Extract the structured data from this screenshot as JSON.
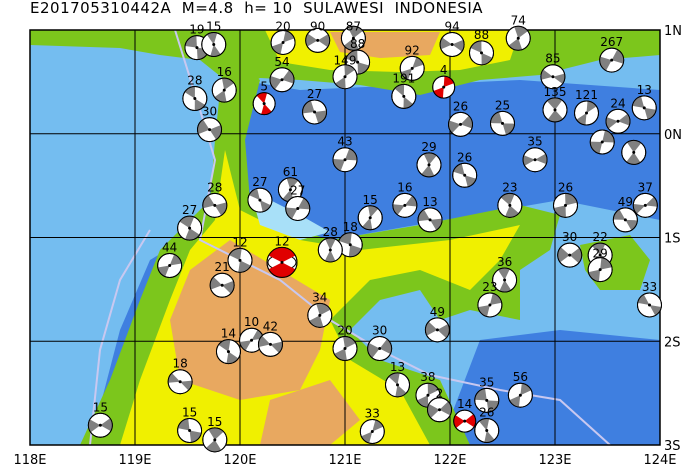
{
  "title": "E201705310442A  M=4.8  h= 10  SULAWESI  INDONESIA",
  "axes": {
    "lon_ticks": [
      "118E",
      "119E",
      "120E",
      "121E",
      "122E",
      "123E",
      "124E"
    ],
    "lat_ticks": [
      "1N",
      "0N",
      "1S",
      "2S",
      "3S"
    ],
    "lon_range": [
      118,
      124
    ],
    "lat_range": [
      -3,
      1
    ]
  },
  "colors": {
    "deep_ocean": "#3f7fe0",
    "shallow_ocean": "#74bdf0",
    "coast_water": "#a8e0f8",
    "lowland": "#7cc61c",
    "hills": "#f0f000",
    "highland": "#e8a860",
    "compression": "#808080",
    "highlight": "#e00000",
    "plate_boundary": "#c8c8f0"
  },
  "chart_data": {
    "type": "focal-mechanism-map",
    "events": [
      {
        "lon": 120.4,
        "lat": -1.24,
        "depth": "12",
        "highlight": true,
        "main": true
      },
      {
        "lon": 120.23,
        "lat": 0.29,
        "depth": "5",
        "highlight": true
      },
      {
        "lon": 121.94,
        "lat": 0.45,
        "depth": "4",
        "highlight": true
      },
      {
        "lon": 122.14,
        "lat": -2.77,
        "depth": "14",
        "highlight": true
      },
      {
        "lon": 119.59,
        "lat": 0.83,
        "depth": "19"
      },
      {
        "lon": 119.75,
        "lat": 0.86,
        "depth": "15"
      },
      {
        "lon": 120.41,
        "lat": 0.88,
        "depth": "20"
      },
      {
        "lon": 120.74,
        "lat": 0.9,
        "depth": "90"
      },
      {
        "lon": 121.12,
        "lat": 0.69,
        "depth": "88"
      },
      {
        "lon": 121.08,
        "lat": 0.92,
        "depth": "87"
      },
      {
        "lon": 121.64,
        "lat": 0.63,
        "depth": "92"
      },
      {
        "lon": 122.02,
        "lat": 0.86,
        "depth": "94"
      },
      {
        "lon": 122.3,
        "lat": 0.78,
        "depth": "88"
      },
      {
        "lon": 122.65,
        "lat": 0.92,
        "depth": "74"
      },
      {
        "lon": 123.54,
        "lat": 0.71,
        "depth": "267"
      },
      {
        "lon": 122.98,
        "lat": 0.55,
        "depth": "85"
      },
      {
        "lon": 119.57,
        "lat": 0.34,
        "depth": "28"
      },
      {
        "lon": 119.85,
        "lat": 0.42,
        "depth": "16"
      },
      {
        "lon": 120.4,
        "lat": 0.52,
        "depth": "54"
      },
      {
        "lon": 120.71,
        "lat": 0.21,
        "depth": "27"
      },
      {
        "lon": 121.56,
        "lat": 0.36,
        "depth": "191"
      },
      {
        "lon": 121.0,
        "lat": 0.55,
        "depth": "149"
      },
      {
        "lon": 122.1,
        "lat": 0.09,
        "depth": "26"
      },
      {
        "lon": 122.5,
        "lat": 0.1,
        "depth": "25"
      },
      {
        "lon": 123.0,
        "lat": 0.23,
        "depth": "135"
      },
      {
        "lon": 123.3,
        "lat": 0.2,
        "depth": "121"
      },
      {
        "lon": 123.6,
        "lat": 0.12,
        "depth": "24"
      },
      {
        "lon": 123.85,
        "lat": 0.25,
        "depth": "13"
      },
      {
        "lon": 123.75,
        "lat": -0.18,
        "depth": ""
      },
      {
        "lon": 123.45,
        "lat": -0.08,
        "depth": ""
      },
      {
        "lon": 122.81,
        "lat": -0.25,
        "depth": "35"
      },
      {
        "lon": 122.14,
        "lat": -0.4,
        "depth": "26"
      },
      {
        "lon": 121.8,
        "lat": -0.3,
        "depth": "29"
      },
      {
        "lon": 121.0,
        "lat": -0.25,
        "depth": "43"
      },
      {
        "lon": 119.71,
        "lat": 0.04,
        "depth": "30"
      },
      {
        "lon": 120.19,
        "lat": -0.64,
        "depth": "27"
      },
      {
        "lon": 120.48,
        "lat": -0.54,
        "depth": "61"
      },
      {
        "lon": 120.55,
        "lat": -0.72,
        "depth": "27"
      },
      {
        "lon": 119.76,
        "lat": -0.69,
        "depth": "28"
      },
      {
        "lon": 119.52,
        "lat": -0.91,
        "depth": "27"
      },
      {
        "lon": 121.24,
        "lat": -0.81,
        "depth": "15"
      },
      {
        "lon": 121.57,
        "lat": -0.69,
        "depth": "16"
      },
      {
        "lon": 121.81,
        "lat": -0.83,
        "depth": "13"
      },
      {
        "lon": 122.57,
        "lat": -0.69,
        "depth": "23"
      },
      {
        "lon": 123.1,
        "lat": -0.69,
        "depth": "26"
      },
      {
        "lon": 123.86,
        "lat": -0.69,
        "depth": "37"
      },
      {
        "lon": 123.67,
        "lat": -0.83,
        "depth": "49"
      },
      {
        "lon": 123.43,
        "lat": -1.17,
        "depth": "22"
      },
      {
        "lon": 123.43,
        "lat": -1.31,
        "depth": "29"
      },
      {
        "lon": 123.14,
        "lat": -1.17,
        "depth": "30"
      },
      {
        "lon": 123.9,
        "lat": -1.65,
        "depth": "33"
      },
      {
        "lon": 122.52,
        "lat": -1.41,
        "depth": "36"
      },
      {
        "lon": 122.38,
        "lat": -1.65,
        "depth": "23"
      },
      {
        "lon": 121.88,
        "lat": -1.89,
        "depth": "49"
      },
      {
        "lon": 121.05,
        "lat": -1.07,
        "depth": "18"
      },
      {
        "lon": 120.86,
        "lat": -1.12,
        "depth": "28"
      },
      {
        "lon": 119.33,
        "lat": -1.27,
        "depth": "44"
      },
      {
        "lon": 119.83,
        "lat": -1.46,
        "depth": "21"
      },
      {
        "lon": 120.0,
        "lat": -1.22,
        "depth": "12"
      },
      {
        "lon": 120.76,
        "lat": -1.75,
        "depth": "34"
      },
      {
        "lon": 120.11,
        "lat": -1.99,
        "depth": "10"
      },
      {
        "lon": 120.29,
        "lat": -2.03,
        "depth": "42"
      },
      {
        "lon": 119.89,
        "lat": -2.1,
        "depth": "14"
      },
      {
        "lon": 121.0,
        "lat": -2.07,
        "depth": "20"
      },
      {
        "lon": 121.33,
        "lat": -2.07,
        "depth": "30"
      },
      {
        "lon": 119.43,
        "lat": -2.39,
        "depth": "18"
      },
      {
        "lon": 121.5,
        "lat": -2.42,
        "depth": "13"
      },
      {
        "lon": 121.79,
        "lat": -2.52,
        "depth": "38"
      },
      {
        "lon": 121.9,
        "lat": -2.66,
        "depth": "2"
      },
      {
        "lon": 122.35,
        "lat": -2.57,
        "depth": "35"
      },
      {
        "lon": 122.35,
        "lat": -2.86,
        "depth": "26"
      },
      {
        "lon": 122.67,
        "lat": -2.52,
        "depth": "56"
      },
      {
        "lon": 118.67,
        "lat": -2.81,
        "depth": "15"
      },
      {
        "lon": 119.52,
        "lat": -2.86,
        "depth": "15"
      },
      {
        "lon": 119.76,
        "lat": -2.95,
        "depth": "15"
      },
      {
        "lon": 121.26,
        "lat": -2.87,
        "depth": "33"
      }
    ]
  }
}
